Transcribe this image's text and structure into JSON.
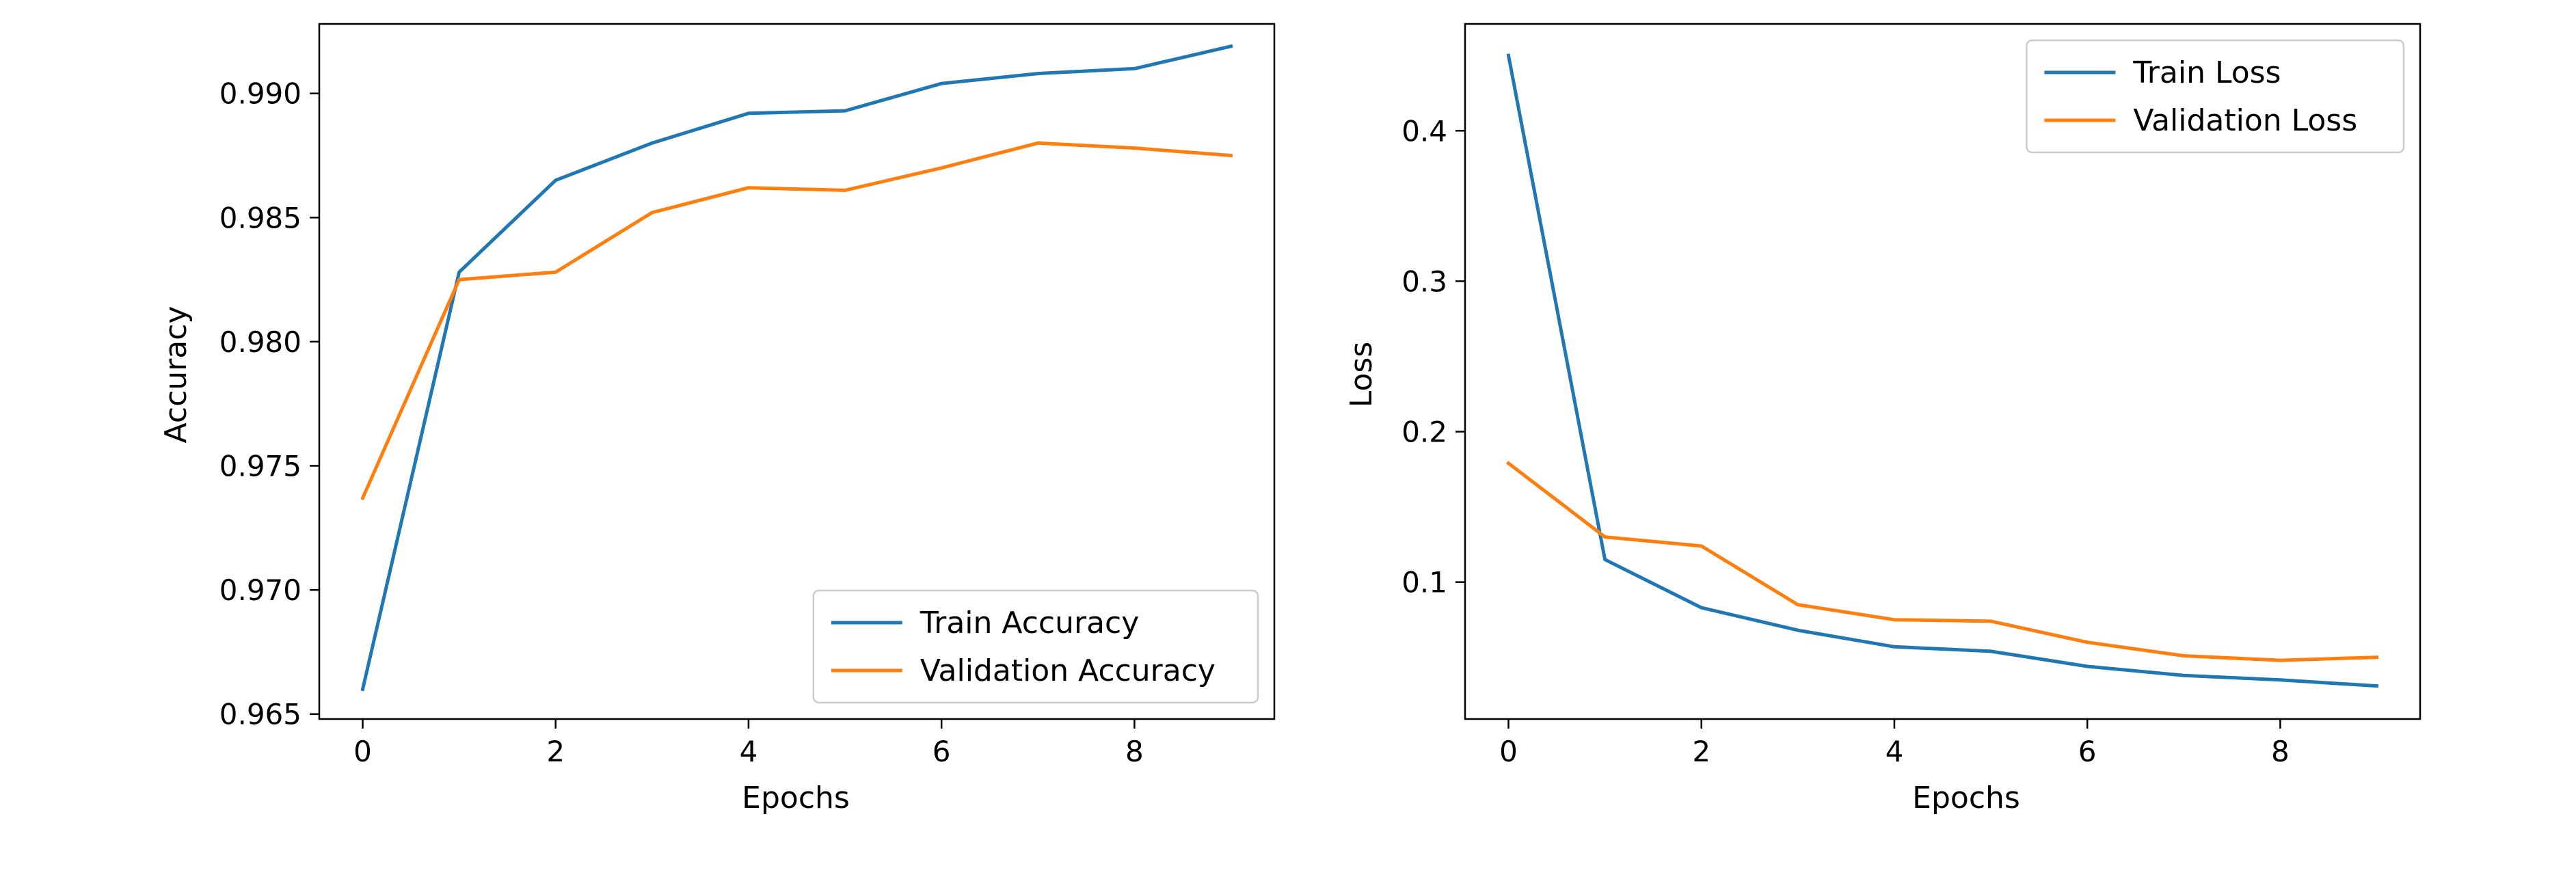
{
  "colors": {
    "train": "#1f77b4",
    "validation": "#ff7f0e",
    "axes": "#000000",
    "background": "#ffffff"
  },
  "chart_data": [
    {
      "type": "line",
      "title": "",
      "xlabel": "Epochs",
      "ylabel": "Accuracy",
      "xlim": [
        -0.45,
        9.45
      ],
      "ylim": [
        0.9648,
        0.9928
      ],
      "xticks": [
        0,
        2,
        4,
        6,
        8
      ],
      "xtick_labels": [
        "0",
        "2",
        "4",
        "6",
        "8"
      ],
      "yticks": [
        0.965,
        0.97,
        0.975,
        0.98,
        0.985,
        0.99
      ],
      "ytick_labels": [
        "0.965",
        "0.970",
        "0.975",
        "0.980",
        "0.985",
        "0.990"
      ],
      "grid": false,
      "legend_position": "lower-right",
      "x": [
        0,
        1,
        2,
        3,
        4,
        5,
        6,
        7,
        8,
        9
      ],
      "series": [
        {
          "name": "Train Accuracy",
          "color": "#1f77b4",
          "values": [
            0.966,
            0.9828,
            0.9865,
            0.988,
            0.9892,
            0.9893,
            0.9904,
            0.9908,
            0.991,
            0.9919
          ]
        },
        {
          "name": "Validation Accuracy",
          "color": "#ff7f0e",
          "values": [
            0.9737,
            0.9825,
            0.9828,
            0.9852,
            0.9862,
            0.9861,
            0.987,
            0.988,
            0.9878,
            0.9875
          ]
        }
      ]
    },
    {
      "type": "line",
      "title": "",
      "xlabel": "Epochs",
      "ylabel": "Loss",
      "xlim": [
        -0.45,
        9.45
      ],
      "ylim": [
        0.009,
        0.471
      ],
      "xticks": [
        0,
        2,
        4,
        6,
        8
      ],
      "xtick_labels": [
        "0",
        "2",
        "4",
        "6",
        "8"
      ],
      "yticks": [
        0.1,
        0.2,
        0.3,
        0.4
      ],
      "ytick_labels": [
        "0.1",
        "0.2",
        "0.3",
        "0.4"
      ],
      "grid": false,
      "legend_position": "upper-right",
      "x": [
        0,
        1,
        2,
        3,
        4,
        5,
        6,
        7,
        8,
        9
      ],
      "series": [
        {
          "name": "Train Loss",
          "color": "#1f77b4",
          "values": [
            0.45,
            0.115,
            0.083,
            0.068,
            0.057,
            0.054,
            0.044,
            0.038,
            0.035,
            0.031
          ]
        },
        {
          "name": "Validation Loss",
          "color": "#ff7f0e",
          "values": [
            0.179,
            0.13,
            0.124,
            0.085,
            0.075,
            0.074,
            0.06,
            0.051,
            0.048,
            0.05
          ]
        }
      ]
    }
  ]
}
